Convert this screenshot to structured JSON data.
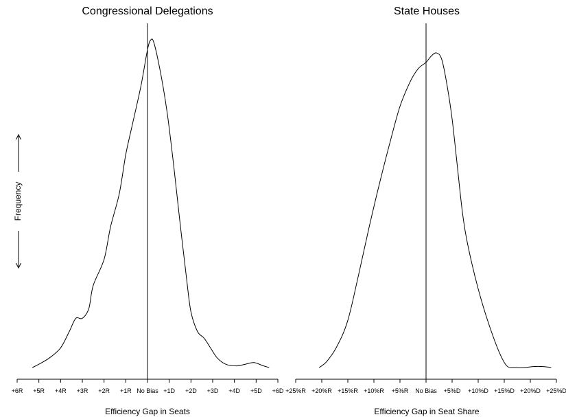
{
  "y_axis": {
    "label": "Frequency"
  },
  "chart_data": [
    {
      "type": "line",
      "title": "Congressional Delegations",
      "xlabel": "Efficiency Gap in Seats",
      "ylabel": "Frequency",
      "x": [
        -6,
        6
      ],
      "ylim": [
        0,
        1
      ],
      "tick_values": [
        -6,
        -5,
        -4,
        -3,
        -2,
        -1,
        0,
        1,
        2,
        3,
        4,
        5,
        6
      ],
      "tick_labels": [
        "+6R",
        "+5R",
        "+4R",
        "+3R",
        "+2R",
        "+1R",
        "No Bias",
        "+1D",
        "+2D",
        "+3D",
        "+4D",
        "+5D",
        "+6D"
      ],
      "reference_line_x": 0,
      "series": [
        {
          "points": [
            [
              -5.3,
              0.0
            ],
            [
              -5.0,
              0.01
            ],
            [
              -4.5,
              0.03
            ],
            [
              -4.0,
              0.06
            ],
            [
              -3.6,
              0.11
            ],
            [
              -3.3,
              0.15
            ],
            [
              -3.0,
              0.15
            ],
            [
              -2.7,
              0.18
            ],
            [
              -2.5,
              0.25
            ],
            [
              -2.0,
              0.33
            ],
            [
              -1.7,
              0.43
            ],
            [
              -1.3,
              0.53
            ],
            [
              -1.0,
              0.65
            ],
            [
              -0.7,
              0.74
            ],
            [
              -0.3,
              0.86
            ],
            [
              0.0,
              0.97
            ],
            [
              0.15,
              1.0
            ],
            [
              0.3,
              0.99
            ],
            [
              0.6,
              0.9
            ],
            [
              0.9,
              0.78
            ],
            [
              1.2,
              0.62
            ],
            [
              1.5,
              0.44
            ],
            [
              1.8,
              0.27
            ],
            [
              2.0,
              0.17
            ],
            [
              2.3,
              0.11
            ],
            [
              2.6,
              0.09
            ],
            [
              2.9,
              0.06
            ],
            [
              3.2,
              0.03
            ],
            [
              3.6,
              0.01
            ],
            [
              4.1,
              0.005
            ],
            [
              4.5,
              0.01
            ],
            [
              4.9,
              0.015
            ],
            [
              5.3,
              0.006
            ],
            [
              5.6,
              0.0
            ]
          ]
        }
      ]
    },
    {
      "type": "line",
      "title": "State Houses",
      "xlabel": "Efficiency Gap in Seat Share",
      "ylabel": "Frequency",
      "x": [
        -25,
        25
      ],
      "ylim": [
        0,
        1
      ],
      "tick_values": [
        -25,
        -20,
        -15,
        -10,
        -5,
        0,
        5,
        10,
        15,
        20,
        25
      ],
      "tick_labels": [
        "+25%R",
        "+20%R",
        "+15%R",
        "+10%R",
        "+5%R",
        "No Bias",
        "+5%D",
        "+10%D",
        "+15%D",
        "+20%D",
        "+25%D"
      ],
      "reference_line_x": 0,
      "series": [
        {
          "points": [
            [
              -20.5,
              0.0
            ],
            [
              -19,
              0.02
            ],
            [
              -17,
              0.07
            ],
            [
              -15,
              0.15
            ],
            [
              -13,
              0.29
            ],
            [
              -11,
              0.44
            ],
            [
              -9,
              0.58
            ],
            [
              -7,
              0.71
            ],
            [
              -5,
              0.83
            ],
            [
              -3,
              0.91
            ],
            [
              -1.5,
              0.95
            ],
            [
              0,
              0.97
            ],
            [
              1,
              0.99
            ],
            [
              2,
              1.0
            ],
            [
              3,
              0.98
            ],
            [
              4,
              0.9
            ],
            [
              5,
              0.79
            ],
            [
              6,
              0.64
            ],
            [
              7,
              0.49
            ],
            [
              8,
              0.39
            ],
            [
              10,
              0.25
            ],
            [
              12,
              0.14
            ],
            [
              14,
              0.05
            ],
            [
              15.5,
              0.005
            ],
            [
              17,
              0.0
            ],
            [
              19,
              0.0
            ],
            [
              20.5,
              0.003
            ],
            [
              22.5,
              0.003
            ],
            [
              24,
              0.0
            ]
          ]
        }
      ]
    }
  ]
}
